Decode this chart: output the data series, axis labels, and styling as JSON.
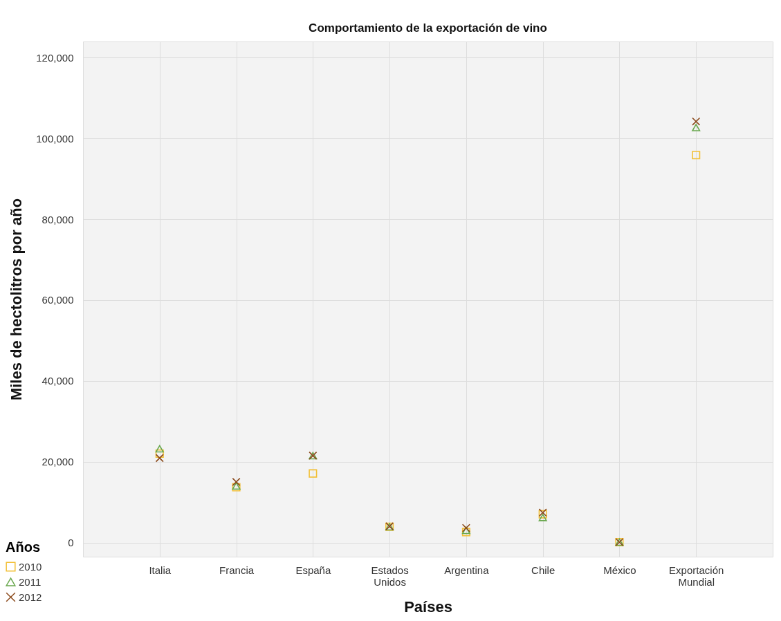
{
  "chart_data": {
    "type": "scatter",
    "title": "Comportamiento de la exportación de vino",
    "xlabel": "Países",
    "ylabel": "Miles de hectolitros por año",
    "legend_title": "Años",
    "categories": [
      "Italia",
      "Francia",
      "España",
      "Estados Unidos",
      "Argentina",
      "Chile",
      "México",
      "Exportación Mundial"
    ],
    "series": [
      {
        "name": "2010",
        "color": "#f2c037",
        "marker": "square",
        "values": [
          22000,
          13700,
          17100,
          3900,
          2600,
          7000,
          100,
          95900
        ]
      },
      {
        "name": "2011",
        "color": "#6aa84f",
        "marker": "triangle",
        "values": [
          23200,
          14000,
          21500,
          3900,
          3000,
          6200,
          100,
          102700
        ]
      },
      {
        "name": "2012",
        "color": "#8b4a1c",
        "marker": "cross",
        "values": [
          20900,
          15000,
          21500,
          4000,
          3600,
          7400,
          100,
          104200
        ]
      }
    ],
    "ylim": [
      -3500,
      124000
    ],
    "yticks": [
      {
        "value": 0,
        "label": "0"
      },
      {
        "value": 20000,
        "label": "20,000"
      },
      {
        "value": 40000,
        "label": "40,000"
      },
      {
        "value": 60000,
        "label": "60,000"
      },
      {
        "value": 80000,
        "label": "80,000"
      },
      {
        "value": 100000,
        "label": "100,000"
      },
      {
        "value": 120000,
        "label": "120,000"
      }
    ],
    "grid": true,
    "legend": "bottom left"
  }
}
